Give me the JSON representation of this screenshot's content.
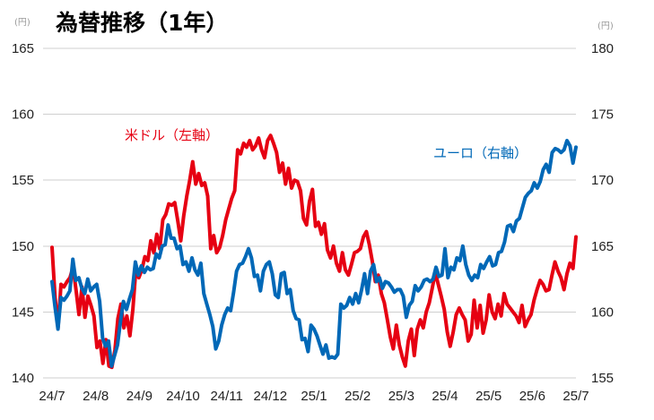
{
  "chart_data": {
    "type": "line",
    "title": "為替推移（1年）",
    "y_left": {
      "unit": "(円)",
      "ylim": [
        140,
        165
      ],
      "ticks": [
        140,
        145,
        150,
        155,
        160,
        165
      ]
    },
    "y_right": {
      "unit": "(円)",
      "ylim": [
        155,
        180
      ],
      "ticks": [
        155,
        160,
        165,
        170,
        175,
        180
      ]
    },
    "x_tick_labels": [
      "24/7",
      "24/8",
      "24/9",
      "24/10",
      "24/11",
      "24/12",
      "25/1",
      "25/2",
      "25/3",
      "25/4",
      "25/5",
      "25/6",
      "25/7"
    ],
    "grid": "horizontal",
    "series": [
      {
        "name": "米ドル（左軸）",
        "axis": "left",
        "color": "#e60012",
        "values": [
          149.9,
          146.2,
          143.8,
          147.1,
          146.9,
          147.3,
          147.6,
          148.4,
          146.7,
          144.8,
          146.9,
          144.6,
          146.2,
          145.5,
          144.7,
          142.3,
          142.8,
          141.1,
          142.9,
          140.9,
          140.8,
          142.1,
          144.5,
          145.6,
          143.8,
          144.7,
          143.2,
          145.2,
          148.2,
          147.6,
          148.2,
          149.2,
          148.9,
          150.4,
          149.5,
          150.9,
          149.8,
          152.0,
          152.4,
          153.2,
          153.1,
          153.3,
          151.9,
          150.4,
          152.3,
          153.8,
          155.0,
          156.4,
          154.7,
          155.5,
          154.6,
          154.8,
          153.8,
          149.8,
          150.8,
          149.5,
          149.9,
          150.8,
          152.0,
          152.8,
          153.6,
          154.2,
          157.3,
          157.0,
          157.8,
          157.5,
          158.0,
          157.3,
          157.6,
          158.2,
          157.3,
          156.7,
          158.0,
          158.4,
          157.8,
          157.1,
          155.6,
          156.3,
          154.7,
          155.9,
          154.4,
          155.0,
          154.9,
          154.2,
          152.1,
          151.6,
          153.4,
          154.3,
          151.5,
          151.8,
          150.9,
          151.7,
          149.7,
          149.1,
          150.0,
          148.7,
          148.1,
          149.5,
          148.2,
          147.8,
          148.6,
          149.5,
          149.6,
          149.8,
          150.7,
          151.1,
          150.1,
          148.8,
          147.3,
          147.8,
          146.4,
          145.7,
          144.4,
          143.1,
          142.2,
          144.0,
          142.5,
          141.6,
          140.9,
          142.8,
          143.7,
          141.7,
          143.7,
          144.4,
          143.8,
          145.0,
          145.7,
          146.8,
          148.0,
          147.1,
          146.2,
          145.2,
          143.5,
          142.4,
          143.5,
          144.8,
          145.3,
          144.8,
          144.4,
          142.8,
          143.3,
          145.9,
          143.8,
          145.5,
          143.4,
          144.4,
          146.3,
          145.0,
          144.5,
          145.6,
          144.7,
          146.4,
          145.6,
          145.3,
          145.0,
          144.7,
          144.2,
          145.5,
          143.9,
          144.4,
          144.8,
          145.9,
          146.7,
          147.4,
          147.1,
          146.6,
          146.7,
          147.8,
          148.8,
          148.1,
          147.6,
          146.7,
          147.9,
          148.7,
          148.3,
          150.7
        ]
      },
      {
        "name": "ユーロ（右軸）",
        "axis": "right",
        "color": "#0068b7",
        "values": [
          162.3,
          160.4,
          158.7,
          161.1,
          160.9,
          161.2,
          161.6,
          164.0,
          162.4,
          162.6,
          161.8,
          161.4,
          162.5,
          161.6,
          161.9,
          162.1,
          160.8,
          158.0,
          157.4,
          157.8,
          155.9,
          156.7,
          157.5,
          159.3,
          160.8,
          160.2,
          161.0,
          161.7,
          163.8,
          162.8,
          163.5,
          163.0,
          163.4,
          163.2,
          163.3,
          164.4,
          164.1,
          165.0,
          165.1,
          166.6,
          165.6,
          165.6,
          164.8,
          165.0,
          163.6,
          163.8,
          163.1,
          164.1,
          163.2,
          162.8,
          163.7,
          161.4,
          160.6,
          159.8,
          158.9,
          157.2,
          157.8,
          159.0,
          159.8,
          160.3,
          160.1,
          161.5,
          163.1,
          163.6,
          163.7,
          164.2,
          164.8,
          164.1,
          162.7,
          162.8,
          161.6,
          163.1,
          163.6,
          163.8,
          162.9,
          161.3,
          161.1,
          162.9,
          163.0,
          161.4,
          161.7,
          160.1,
          159.5,
          159.4,
          157.9,
          158.0,
          157.0,
          159.0,
          158.7,
          158.2,
          157.5,
          156.8,
          157.5,
          156.5,
          156.6,
          156.5,
          156.8,
          160.6,
          160.3,
          160.5,
          161.1,
          160.6,
          161.4,
          160.7,
          161.7,
          162.9,
          161.4,
          163.1,
          163.6,
          162.3,
          162.6,
          161.8,
          162.3,
          162.2,
          161.9,
          161.5,
          161.7,
          161.7,
          161.2,
          159.6,
          160.5,
          160.8,
          162.0,
          161.6,
          161.9,
          162.4,
          162.5,
          162.3,
          162.5,
          163.4,
          162.7,
          162.8,
          164.8,
          162.6,
          163.4,
          163.2,
          164.1,
          163.9,
          165.0,
          163.6,
          162.8,
          162.4,
          162.8,
          162.6,
          163.6,
          163.3,
          163.8,
          164.2,
          163.5,
          163.6,
          164.5,
          164.6,
          165.3,
          166.5,
          166.6,
          166.1,
          166.9,
          167.1,
          167.9,
          168.7,
          169.0,
          169.2,
          169.8,
          169.4,
          169.9,
          170.8,
          171.2,
          170.6,
          172.1,
          172.4,
          172.3,
          172.1,
          172.3,
          173.0,
          172.6,
          171.3,
          172.5
        ]
      }
    ]
  }
}
